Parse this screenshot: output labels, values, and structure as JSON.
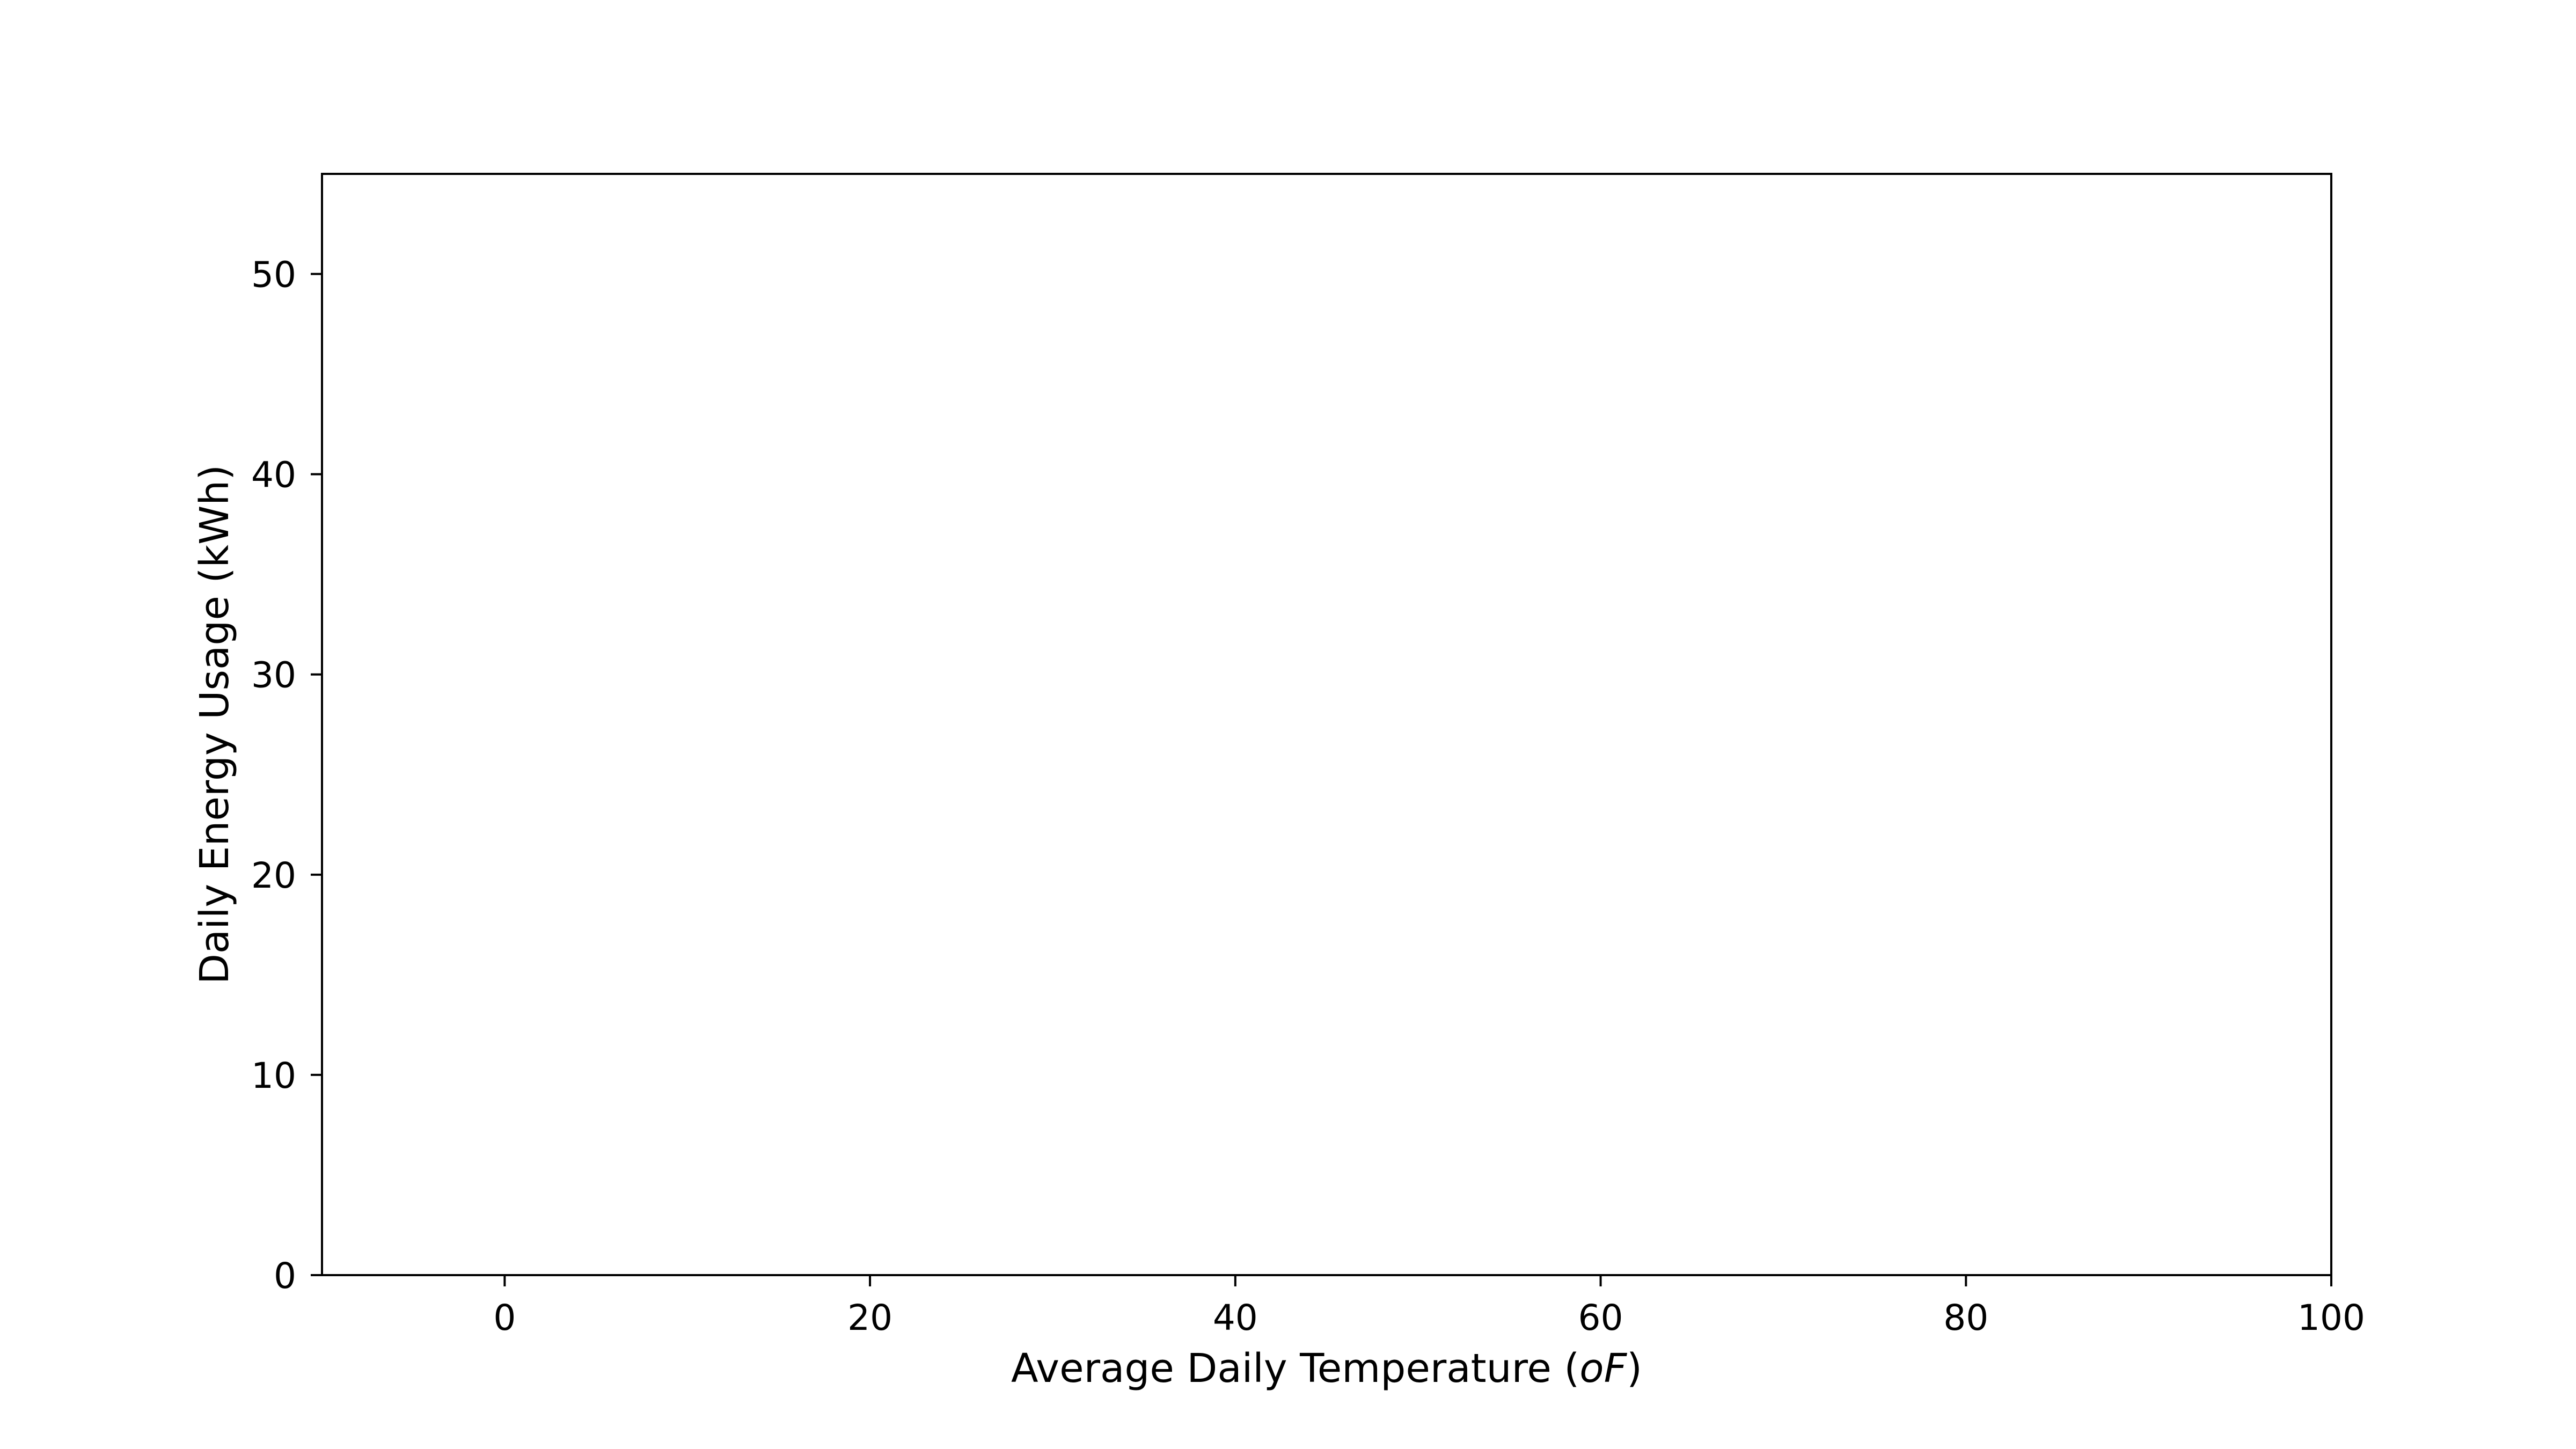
{
  "chart_data": {
    "type": "scatter",
    "title": "",
    "xlabel": "Average Daily Temperature (",
    "xlabel_unit": "oF",
    "xlabel_close": ")",
    "ylabel": "Daily Energy Usage (kWh)",
    "xlim": [
      -10,
      100
    ],
    "ylim": [
      0,
      55
    ],
    "xticks": [
      0,
      20,
      40,
      60,
      80,
      100
    ],
    "yticks": [
      0,
      10,
      20,
      30,
      40,
      50
    ],
    "xtick_labels": [
      "0",
      "20",
      "40",
      "60",
      "80",
      "100"
    ],
    "ytick_labels": [
      "0",
      "10",
      "20",
      "30",
      "40",
      "50"
    ],
    "grid": false,
    "series": [],
    "colors": {
      "axis": "#000000",
      "background": "#ffffff"
    }
  }
}
